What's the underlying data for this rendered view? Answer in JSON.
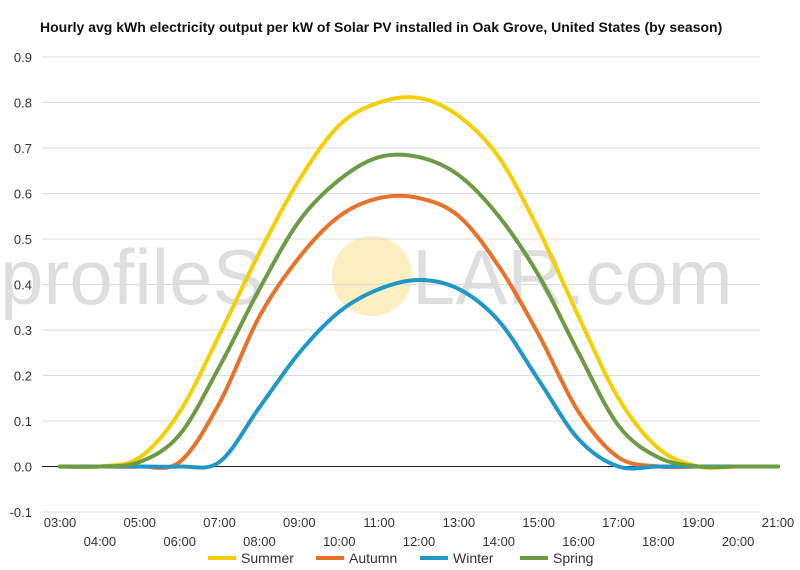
{
  "chart_data": {
    "type": "line",
    "title": "Hourly avg kWh electricity output per kW of Solar PV installed in Oak Grove, United States (by season)",
    "xlabel": "",
    "ylabel": "",
    "ylim": [
      -0.1,
      0.9
    ],
    "yticks": [
      "-0.1",
      "0.0",
      "0.1",
      "0.2",
      "0.3",
      "0.4",
      "0.5",
      "0.6",
      "0.7",
      "0.8",
      "0.9"
    ],
    "xticks": [
      "03:00",
      "04:00",
      "05:00",
      "06:00",
      "07:00",
      "08:00",
      "09:00",
      "10:00",
      "11:00",
      "12:00",
      "13:00",
      "14:00",
      "15:00",
      "16:00",
      "17:00",
      "18:00",
      "19:00",
      "20:00",
      "21:00"
    ],
    "grid": "horizontal",
    "legend": "bottom",
    "watermark": {
      "left": "profileS",
      "right": "LAR.com"
    },
    "series": [
      {
        "name": "Summer",
        "color": "#f5d000",
        "x": [
          3,
          4,
          5,
          6,
          7,
          8,
          9,
          10,
          11,
          12,
          13,
          14,
          15,
          16,
          17,
          18,
          19,
          20,
          21
        ],
        "values": [
          0,
          0,
          0.02,
          0.12,
          0.29,
          0.47,
          0.63,
          0.75,
          0.8,
          0.81,
          0.77,
          0.68,
          0.52,
          0.33,
          0.15,
          0.04,
          0,
          0,
          0
        ]
      },
      {
        "name": "Autumn",
        "color": "#e8722a",
        "x": [
          3,
          4,
          5,
          6,
          7,
          8,
          9,
          10,
          11,
          12,
          13,
          14,
          15,
          16,
          17,
          18,
          19,
          20,
          21
        ],
        "values": [
          0,
          0,
          0,
          0.01,
          0.14,
          0.33,
          0.46,
          0.55,
          0.59,
          0.59,
          0.55,
          0.44,
          0.29,
          0.12,
          0.02,
          0,
          0,
          0,
          0
        ]
      },
      {
        "name": "Winter",
        "color": "#1f97c7",
        "x": [
          3,
          4,
          5,
          6,
          7,
          8,
          9,
          10,
          11,
          12,
          13,
          14,
          15,
          16,
          17,
          18,
          19,
          20,
          21
        ],
        "values": [
          0,
          0,
          0,
          0,
          0.01,
          0.13,
          0.25,
          0.34,
          0.39,
          0.41,
          0.39,
          0.32,
          0.19,
          0.06,
          0,
          0,
          0,
          0,
          0
        ]
      },
      {
        "name": "Spring",
        "color": "#6d9b45",
        "x": [
          3,
          4,
          5,
          6,
          7,
          8,
          9,
          10,
          11,
          12,
          13,
          14,
          15,
          16,
          17,
          18,
          19,
          20,
          21
        ],
        "values": [
          0,
          0,
          0.01,
          0.07,
          0.22,
          0.39,
          0.54,
          0.63,
          0.68,
          0.68,
          0.64,
          0.55,
          0.42,
          0.25,
          0.09,
          0.02,
          0,
          0,
          0
        ]
      }
    ]
  }
}
